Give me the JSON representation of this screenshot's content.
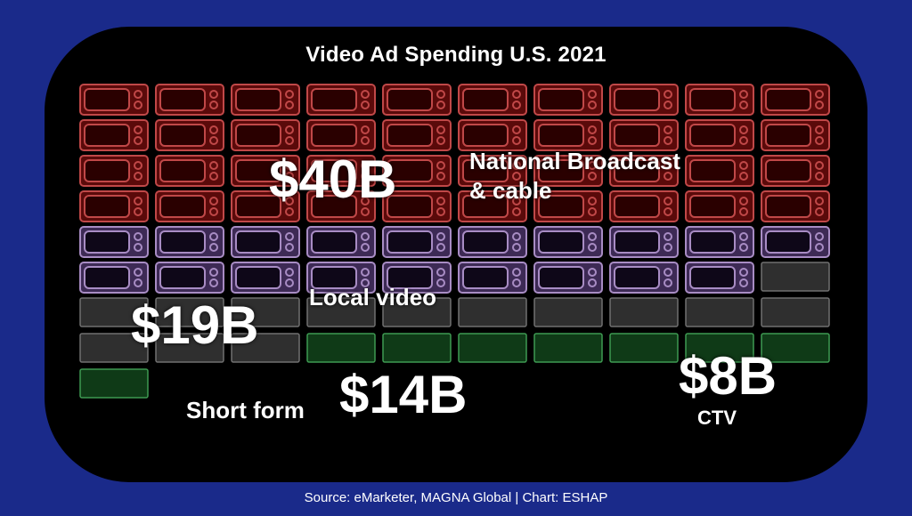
{
  "chart_data": {
    "type": "pictogram",
    "title": "Video Ad Spending U.S. 2021",
    "unit": "USD billions",
    "series": [
      {
        "name": "National Broadcast & cable",
        "value_label": "$40B",
        "value": 40,
        "color": "#a02020",
        "icon": "crt-tv-icon"
      },
      {
        "name": "Local video",
        "value_label": "$19B",
        "value": 19,
        "color": "#9a7ab0",
        "icon": "crt-tv-icon"
      },
      {
        "name": "Short form",
        "value_label": "$14B",
        "value": 14,
        "color": "#6a6a6a",
        "icon": "flat-screen-icon"
      },
      {
        "name": "CTV",
        "value_label": "$8B",
        "value": 8,
        "color": "#2e7a3e",
        "icon": "flat-screen-icon"
      }
    ]
  },
  "source": "Source: eMarketer, MAGNA Global | Chart: ESHAP"
}
